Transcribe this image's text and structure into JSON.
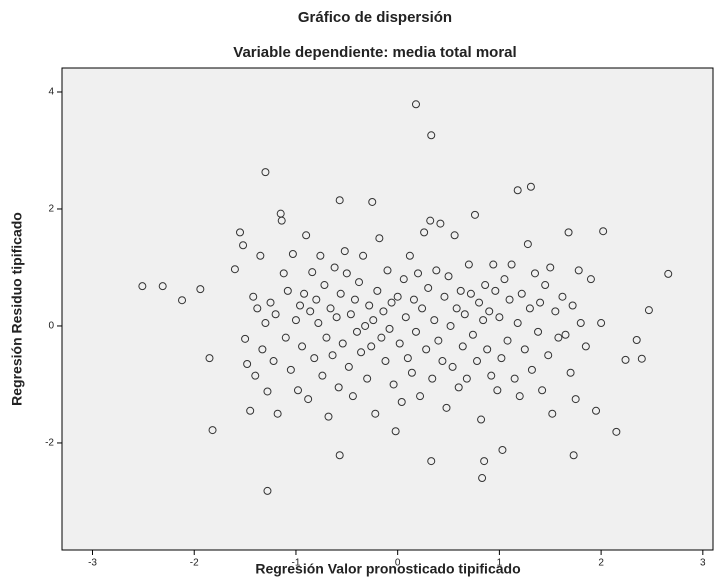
{
  "chart_data": {
    "type": "scatter",
    "title": "Gráfico de dispersión",
    "subtitle": "Variable dependiente: media total moral",
    "x_label": "Regresión Valor pronosticado tipificado",
    "y_label": "Regresión Residuo tipificado",
    "color": "#333333",
    "xlim": [
      -3.3,
      3.1
    ],
    "ylim": [
      -3.83,
      4.41
    ],
    "xticks": [
      -3,
      -2,
      -1,
      0,
      1,
      2,
      3
    ],
    "yticks": [
      -2,
      0,
      2,
      4
    ],
    "x": [
      0.18,
      0.33,
      -1.3,
      -1.28,
      -1.82,
      -2.51,
      -2.31,
      -2.12,
      -1.94,
      -1.85,
      2.66,
      2.47,
      2.35,
      2.4,
      2.24,
      2.15,
      2.02,
      1.73,
      1.31,
      1.18,
      -0.57,
      -0.25,
      0.33,
      0.85,
      0.83,
      -0.57,
      1.03,
      -1.6,
      -1.55,
      -1.52,
      -1.5,
      -1.48,
      -1.45,
      -1.42,
      -1.4,
      -1.38,
      -1.35,
      -1.33,
      -1.3,
      -1.28,
      -1.25,
      -1.22,
      -1.2,
      -1.18,
      -1.15,
      -1.14,
      -1.12,
      -1.1,
      -1.08,
      -1.05,
      -1.03,
      -1.0,
      -0.98,
      -0.96,
      -0.94,
      -0.92,
      -0.9,
      -0.88,
      -0.86,
      -0.84,
      -0.82,
      -0.8,
      -0.78,
      -0.76,
      -0.74,
      -0.72,
      -0.7,
      -0.68,
      -0.66,
      -0.64,
      -0.62,
      -0.6,
      -0.58,
      -0.56,
      -0.54,
      -0.52,
      -0.5,
      -0.48,
      -0.46,
      -0.44,
      -0.42,
      -0.4,
      -0.38,
      -0.36,
      -0.34,
      -0.32,
      -0.3,
      -0.28,
      -0.26,
      -0.24,
      -0.22,
      -0.2,
      -0.18,
      -0.16,
      -0.14,
      -0.12,
      -0.1,
      -0.08,
      -0.06,
      -0.04,
      -0.02,
      0.0,
      0.02,
      0.04,
      0.06,
      0.08,
      0.1,
      0.12,
      0.14,
      0.16,
      0.18,
      0.2,
      0.22,
      0.24,
      0.26,
      0.28,
      0.3,
      0.32,
      0.34,
      0.36,
      0.38,
      0.4,
      0.42,
      0.44,
      0.46,
      0.48,
      0.5,
      0.52,
      0.54,
      0.56,
      0.58,
      0.6,
      0.62,
      0.64,
      0.66,
      0.68,
      0.7,
      0.72,
      0.74,
      0.76,
      0.78,
      0.8,
      0.82,
      0.84,
      0.86,
      0.88,
      0.9,
      0.92,
      0.94,
      0.96,
      0.98,
      1.0,
      1.02,
      1.05,
      1.08,
      1.1,
      1.12,
      1.15,
      1.18,
      1.2,
      1.22,
      1.25,
      1.28,
      1.3,
      1.32,
      1.35,
      1.38,
      1.4,
      1.42,
      1.45,
      1.48,
      1.5,
      1.52,
      1.55,
      1.58,
      1.62,
      1.65,
      1.68,
      1.7,
      1.72,
      1.75,
      1.78,
      1.8,
      1.85,
      1.9,
      1.95,
      2.0
    ],
    "values": [
      3.79,
      3.26,
      2.63,
      -2.82,
      -1.78,
      0.68,
      0.68,
      0.44,
      0.63,
      -0.55,
      0.89,
      0.27,
      -0.24,
      -0.56,
      -0.58,
      -1.81,
      1.62,
      -2.21,
      2.38,
      2.32,
      2.15,
      2.12,
      -2.31,
      -2.31,
      -2.6,
      -2.21,
      -2.12,
      0.97,
      1.6,
      1.38,
      -0.22,
      -0.65,
      -1.45,
      0.5,
      -0.85,
      0.3,
      1.2,
      -0.4,
      0.05,
      -1.12,
      0.4,
      -0.6,
      0.2,
      -1.5,
      1.92,
      1.8,
      0.9,
      -0.2,
      0.6,
      -0.75,
      1.23,
      0.1,
      -1.1,
      0.35,
      -0.35,
      0.55,
      1.55,
      -1.25,
      0.25,
      0.92,
      -0.55,
      0.45,
      0.05,
      1.2,
      -0.85,
      0.7,
      -0.2,
      -1.55,
      0.3,
      -0.5,
      1.0,
      0.15,
      -1.05,
      0.55,
      -0.3,
      1.28,
      0.9,
      -0.7,
      0.2,
      -1.2,
      0.45,
      -0.1,
      0.75,
      -0.45,
      1.2,
      0.0,
      -0.9,
      0.35,
      -0.35,
      0.1,
      -1.5,
      0.6,
      1.5,
      -0.2,
      0.25,
      -0.6,
      0.95,
      -0.05,
      0.4,
      -1.0,
      -1.8,
      0.5,
      -0.3,
      -1.3,
      0.8,
      0.15,
      -0.55,
      1.2,
      -0.8,
      0.45,
      -0.1,
      0.9,
      -1.2,
      0.3,
      1.6,
      -0.4,
      0.65,
      1.8,
      -0.9,
      0.1,
      0.95,
      -0.25,
      1.75,
      -0.6,
      0.5,
      -1.4,
      0.85,
      0.0,
      -0.7,
      1.55,
      0.3,
      -1.05,
      0.6,
      -0.35,
      0.2,
      -0.9,
      1.05,
      0.55,
      -0.15,
      1.9,
      -0.6,
      0.4,
      -1.6,
      0.1,
      0.7,
      -0.4,
      0.25,
      -0.85,
      1.05,
      0.6,
      -1.1,
      0.15,
      -0.55,
      0.8,
      -0.25,
      0.45,
      1.05,
      -0.9,
      0.05,
      -1.2,
      0.55,
      -0.4,
      1.4,
      0.3,
      -0.75,
      0.9,
      -0.1,
      0.4,
      -1.1,
      0.7,
      -0.5,
      1.0,
      -1.5,
      0.25,
      -0.2,
      0.5,
      -0.15,
      1.6,
      -0.8,
      0.35,
      -1.25,
      0.95,
      0.05,
      -0.35,
      0.8,
      -1.45,
      0.05
    ]
  }
}
